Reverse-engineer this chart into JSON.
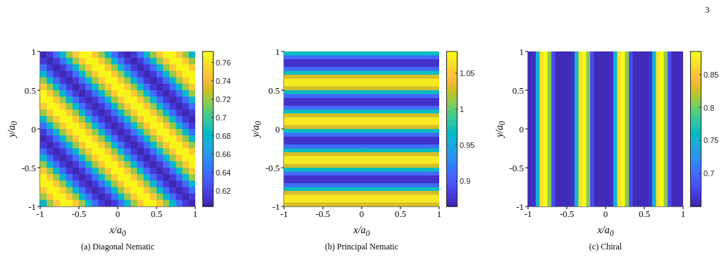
{
  "chart_data": [
    {
      "type": "heatmap",
      "title": "(a) Diagonal Nematic",
      "xlabel": "x/a$_{0}$",
      "ylabel": "y/a$_{0}$",
      "xlim": [
        -1,
        1
      ],
      "ylim": [
        -1,
        1
      ],
      "xticks": [
        -1,
        -0.5,
        0,
        0.5,
        1
      ],
      "yticks": [
        -1,
        -0.5,
        0,
        0.5,
        1
      ],
      "clim": [
        0.603,
        0.772
      ],
      "cticks": [
        0.62,
        0.64,
        0.66,
        0.68,
        0.7,
        0.72,
        0.74,
        0.76
      ],
      "x": [
        -0.958,
        -0.875,
        -0.792,
        -0.708,
        -0.625,
        -0.542,
        -0.458,
        -0.375,
        -0.292,
        -0.208,
        -0.125,
        -0.042,
        0.042,
        0.125,
        0.208,
        0.292,
        0.375,
        0.458,
        0.542,
        0.625,
        0.708,
        0.792,
        0.875,
        0.958
      ],
      "y": [
        0.958,
        0.875,
        0.792,
        0.708,
        0.625,
        0.542,
        0.458,
        0.375,
        0.292,
        0.208,
        0.125,
        0.042,
        -0.042,
        -0.125,
        -0.208,
        -0.292,
        -0.375,
        -0.458,
        -0.542,
        -0.625,
        -0.708,
        -0.792,
        -0.875,
        -0.958
      ],
      "cells": [
        [
          0.605,
          0.615,
          0.64,
          0.68,
          0.72,
          0.75,
          0.77,
          0.77,
          0.75,
          0.72,
          0.68,
          0.64,
          0.615,
          0.605,
          0.615,
          0.64,
          0.68,
          0.72,
          0.75,
          0.77,
          0.77,
          0.75,
          0.72,
          0.68
        ],
        [
          0.615,
          0.605,
          0.615,
          0.64,
          0.68,
          0.72,
          0.75,
          0.77,
          0.77,
          0.75,
          0.72,
          0.68,
          0.64,
          0.615,
          0.605,
          0.615,
          0.64,
          0.68,
          0.72,
          0.75,
          0.77,
          0.77,
          0.75,
          0.72
        ],
        [
          0.64,
          0.615,
          0.605,
          0.615,
          0.64,
          0.68,
          0.72,
          0.75,
          0.77,
          0.77,
          0.75,
          0.72,
          0.68,
          0.64,
          0.615,
          0.605,
          0.615,
          0.64,
          0.68,
          0.72,
          0.75,
          0.77,
          0.77,
          0.75
        ],
        [
          0.68,
          0.64,
          0.615,
          0.605,
          0.615,
          0.64,
          0.68,
          0.72,
          0.75,
          0.77,
          0.77,
          0.75,
          0.72,
          0.68,
          0.64,
          0.615,
          0.605,
          0.615,
          0.64,
          0.68,
          0.72,
          0.75,
          0.77,
          0.77
        ],
        [
          0.72,
          0.68,
          0.64,
          0.615,
          0.605,
          0.615,
          0.64,
          0.68,
          0.72,
          0.75,
          0.77,
          0.77,
          0.75,
          0.72,
          0.68,
          0.64,
          0.615,
          0.605,
          0.615,
          0.64,
          0.68,
          0.72,
          0.75,
          0.77
        ],
        [
          0.75,
          0.72,
          0.68,
          0.64,
          0.615,
          0.605,
          0.615,
          0.64,
          0.68,
          0.72,
          0.75,
          0.77,
          0.77,
          0.75,
          0.72,
          0.68,
          0.64,
          0.615,
          0.605,
          0.615,
          0.64,
          0.68,
          0.72,
          0.75
        ],
        [
          0.77,
          0.75,
          0.72,
          0.68,
          0.64,
          0.615,
          0.605,
          0.615,
          0.64,
          0.68,
          0.72,
          0.75,
          0.77,
          0.77,
          0.75,
          0.72,
          0.68,
          0.64,
          0.615,
          0.605,
          0.615,
          0.64,
          0.68,
          0.72
        ],
        [
          0.77,
          0.77,
          0.75,
          0.72,
          0.68,
          0.64,
          0.615,
          0.605,
          0.615,
          0.64,
          0.68,
          0.72,
          0.75,
          0.77,
          0.77,
          0.75,
          0.72,
          0.68,
          0.64,
          0.615,
          0.605,
          0.615,
          0.64,
          0.68
        ],
        [
          0.75,
          0.77,
          0.77,
          0.75,
          0.72,
          0.68,
          0.64,
          0.615,
          0.605,
          0.615,
          0.64,
          0.68,
          0.72,
          0.75,
          0.77,
          0.77,
          0.75,
          0.72,
          0.68,
          0.64,
          0.615,
          0.605,
          0.615,
          0.64
        ],
        [
          0.72,
          0.75,
          0.77,
          0.77,
          0.75,
          0.72,
          0.68,
          0.64,
          0.615,
          0.605,
          0.615,
          0.64,
          0.68,
          0.72,
          0.75,
          0.77,
          0.77,
          0.75,
          0.72,
          0.68,
          0.64,
          0.615,
          0.605,
          0.615
        ],
        [
          0.68,
          0.72,
          0.75,
          0.77,
          0.77,
          0.75,
          0.72,
          0.68,
          0.64,
          0.615,
          0.605,
          0.615,
          0.64,
          0.68,
          0.72,
          0.75,
          0.77,
          0.77,
          0.75,
          0.72,
          0.68,
          0.64,
          0.615,
          0.605
        ],
        [
          0.64,
          0.68,
          0.72,
          0.75,
          0.77,
          0.77,
          0.75,
          0.72,
          0.68,
          0.64,
          0.615,
          0.605,
          0.615,
          0.64,
          0.68,
          0.72,
          0.75,
          0.77,
          0.77,
          0.75,
          0.72,
          0.68,
          0.64,
          0.615
        ],
        [
          0.615,
          0.64,
          0.68,
          0.72,
          0.75,
          0.77,
          0.77,
          0.75,
          0.72,
          0.68,
          0.64,
          0.615,
          0.605,
          0.615,
          0.64,
          0.68,
          0.72,
          0.75,
          0.77,
          0.77,
          0.75,
          0.72,
          0.68,
          0.64
        ],
        [
          0.605,
          0.615,
          0.64,
          0.68,
          0.72,
          0.75,
          0.77,
          0.77,
          0.75,
          0.72,
          0.68,
          0.64,
          0.615,
          0.605,
          0.615,
          0.64,
          0.68,
          0.72,
          0.75,
          0.77,
          0.77,
          0.75,
          0.72,
          0.68
        ],
        [
          0.615,
          0.605,
          0.615,
          0.64,
          0.68,
          0.72,
          0.75,
          0.77,
          0.77,
          0.75,
          0.72,
          0.68,
          0.64,
          0.615,
          0.605,
          0.615,
          0.64,
          0.68,
          0.72,
          0.75,
          0.77,
          0.77,
          0.75,
          0.72
        ],
        [
          0.64,
          0.615,
          0.605,
          0.615,
          0.64,
          0.68,
          0.72,
          0.75,
          0.77,
          0.77,
          0.75,
          0.72,
          0.68,
          0.64,
          0.615,
          0.605,
          0.615,
          0.64,
          0.68,
          0.72,
          0.75,
          0.77,
          0.77,
          0.75
        ],
        [
          0.68,
          0.64,
          0.615,
          0.605,
          0.615,
          0.64,
          0.68,
          0.72,
          0.75,
          0.77,
          0.77,
          0.75,
          0.72,
          0.68,
          0.64,
          0.615,
          0.605,
          0.615,
          0.64,
          0.68,
          0.72,
          0.75,
          0.77,
          0.77
        ],
        [
          0.72,
          0.68,
          0.64,
          0.615,
          0.605,
          0.615,
          0.64,
          0.68,
          0.72,
          0.75,
          0.77,
          0.77,
          0.75,
          0.72,
          0.68,
          0.64,
          0.615,
          0.605,
          0.615,
          0.64,
          0.68,
          0.72,
          0.75,
          0.77
        ],
        [
          0.75,
          0.72,
          0.68,
          0.64,
          0.615,
          0.605,
          0.615,
          0.64,
          0.68,
          0.72,
          0.75,
          0.77,
          0.77,
          0.75,
          0.72,
          0.68,
          0.64,
          0.615,
          0.605,
          0.615,
          0.64,
          0.68,
          0.72,
          0.75
        ],
        [
          0.77,
          0.75,
          0.72,
          0.68,
          0.64,
          0.615,
          0.605,
          0.615,
          0.64,
          0.68,
          0.72,
          0.75,
          0.77,
          0.77,
          0.75,
          0.72,
          0.68,
          0.64,
          0.615,
          0.605,
          0.615,
          0.64,
          0.68,
          0.72
        ],
        [
          0.77,
          0.77,
          0.75,
          0.72,
          0.68,
          0.64,
          0.615,
          0.605,
          0.615,
          0.64,
          0.68,
          0.72,
          0.75,
          0.77,
          0.77,
          0.75,
          0.72,
          0.68,
          0.64,
          0.615,
          0.605,
          0.615,
          0.64,
          0.68
        ],
        [
          0.75,
          0.77,
          0.77,
          0.75,
          0.72,
          0.68,
          0.64,
          0.615,
          0.605,
          0.615,
          0.64,
          0.68,
          0.72,
          0.75,
          0.77,
          0.77,
          0.75,
          0.72,
          0.68,
          0.64,
          0.615,
          0.605,
          0.615,
          0.64
        ],
        [
          0.72,
          0.75,
          0.77,
          0.77,
          0.75,
          0.72,
          0.68,
          0.64,
          0.615,
          0.605,
          0.615,
          0.64,
          0.68,
          0.72,
          0.75,
          0.77,
          0.77,
          0.75,
          0.72,
          0.68,
          0.64,
          0.615,
          0.605,
          0.615
        ],
        [
          0.68,
          0.72,
          0.75,
          0.77,
          0.77,
          0.75,
          0.72,
          0.68,
          0.64,
          0.615,
          0.605,
          0.615,
          0.64,
          0.68,
          0.72,
          0.75,
          0.77,
          0.77,
          0.75,
          0.72,
          0.68,
          0.64,
          0.615,
          0.605
        ]
      ]
    },
    {
      "type": "heatmap",
      "title": "(b) Principal Nematic",
      "xlabel": "x/a$_{0}$",
      "ylabel": "y/a$_{0}$",
      "xlim": [
        -1,
        1
      ],
      "ylim": [
        -1,
        1
      ],
      "xticks": [
        -1,
        -0.5,
        0,
        0.5,
        1
      ],
      "yticks": [
        -1,
        -0.5,
        0,
        0.5,
        1
      ],
      "clim": [
        0.865,
        1.08
      ],
      "cticks": [
        0.9,
        0.95,
        1,
        1.05
      ],
      "x": [
        -0.5,
        0.5
      ],
      "y": [
        0.975,
        0.925,
        0.875,
        0.825,
        0.775,
        0.725,
        0.675,
        0.625,
        0.575,
        0.525,
        0.475,
        0.425,
        0.375,
        0.325,
        0.275,
        0.225,
        0.175,
        0.125,
        0.075,
        0.025,
        -0.025,
        -0.075,
        -0.125,
        -0.175,
        -0.225,
        -0.275,
        -0.325,
        -0.375,
        -0.425,
        -0.475,
        -0.525,
        -0.575,
        -0.625,
        -0.675,
        -0.725,
        -0.775,
        -0.825,
        -0.875,
        -0.925,
        -0.975
      ],
      "cells": [
        [
          0.97,
          0.97
        ],
        [
          0.91,
          0.91
        ],
        [
          0.875,
          0.875
        ],
        [
          0.875,
          0.875
        ],
        [
          0.91,
          0.91
        ],
        [
          0.97,
          0.97
        ],
        [
          1.03,
          1.03
        ],
        [
          1.07,
          1.07
        ],
        [
          1.07,
          1.07
        ],
        [
          1.03,
          1.03
        ],
        [
          0.97,
          0.97
        ],
        [
          0.91,
          0.91
        ],
        [
          0.875,
          0.875
        ],
        [
          0.875,
          0.875
        ],
        [
          0.91,
          0.91
        ],
        [
          0.97,
          0.97
        ],
        [
          1.03,
          1.03
        ],
        [
          1.07,
          1.07
        ],
        [
          1.07,
          1.07
        ],
        [
          1.03,
          1.03
        ],
        [
          0.97,
          0.97
        ],
        [
          0.91,
          0.91
        ],
        [
          0.875,
          0.875
        ],
        [
          0.875,
          0.875
        ],
        [
          0.91,
          0.91
        ],
        [
          0.97,
          0.97
        ],
        [
          1.03,
          1.03
        ],
        [
          1.07,
          1.07
        ],
        [
          1.07,
          1.07
        ],
        [
          1.03,
          1.03
        ],
        [
          0.97,
          0.97
        ],
        [
          0.91,
          0.91
        ],
        [
          0.875,
          0.875
        ],
        [
          0.875,
          0.875
        ],
        [
          0.91,
          0.91
        ],
        [
          0.97,
          0.97
        ],
        [
          1.03,
          1.03
        ],
        [
          1.07,
          1.07
        ],
        [
          1.07,
          1.07
        ],
        [
          1.03,
          1.03
        ]
      ]
    },
    {
      "type": "heatmap",
      "title": "(c) Chiral",
      "xlabel": "x/a$_{0}$",
      "ylabel": "y/a$_{0}$",
      "xlim": [
        -1,
        1
      ],
      "ylim": [
        -1,
        1
      ],
      "xticks": [
        -1,
        -0.5,
        0,
        0.5,
        1
      ],
      "yticks": [
        -1,
        -0.5,
        0,
        0.5,
        1
      ],
      "clim": [
        0.65,
        0.885
      ],
      "cticks": [
        0.7,
        0.75,
        0.8,
        0.85
      ],
      "annotations": [
        "3"
      ],
      "x": [
        -0.975,
        -0.925,
        -0.875,
        -0.825,
        -0.775,
        -0.725,
        -0.675,
        -0.625,
        -0.575,
        -0.525,
        -0.475,
        -0.425,
        -0.375,
        -0.325,
        -0.275,
        -0.225,
        -0.175,
        -0.125,
        -0.075,
        -0.025,
        0.025,
        0.075,
        0.125,
        0.175,
        0.225,
        0.275,
        0.325,
        0.375,
        0.425,
        0.475,
        0.525,
        0.575,
        0.625,
        0.675,
        0.725,
        0.775,
        0.825,
        0.875,
        0.925,
        0.975
      ],
      "y": [
        0.5,
        -0.5
      ],
      "cells": [
        [
          0.655,
          0.66,
          0.75,
          0.87,
          0.885,
          0.81,
          0.68,
          0.655,
          0.655,
          0.655,
          0.655,
          0.66,
          0.75,
          0.87,
          0.885,
          0.81,
          0.68,
          0.655,
          0.655,
          0.655,
          0.655,
          0.66,
          0.75,
          0.87,
          0.885,
          0.81,
          0.68,
          0.655,
          0.655,
          0.655,
          0.655,
          0.66,
          0.75,
          0.87,
          0.885,
          0.81,
          0.68,
          0.655,
          0.655,
          0.655
        ],
        [
          0.655,
          0.66,
          0.75,
          0.87,
          0.885,
          0.81,
          0.68,
          0.655,
          0.655,
          0.655,
          0.655,
          0.66,
          0.75,
          0.87,
          0.885,
          0.81,
          0.68,
          0.655,
          0.655,
          0.655,
          0.655,
          0.66,
          0.75,
          0.87,
          0.885,
          0.81,
          0.68,
          0.655,
          0.655,
          0.655,
          0.655,
          0.66,
          0.75,
          0.87,
          0.885,
          0.81,
          0.68,
          0.655,
          0.655,
          0.655
        ]
      ]
    }
  ]
}
